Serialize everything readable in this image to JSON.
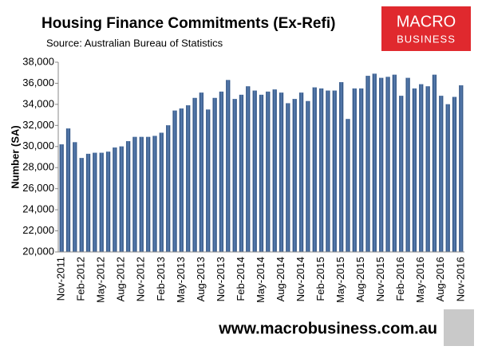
{
  "chart_data": {
    "type": "bar",
    "title": "Housing  Finance Commitments (Ex-Refi)",
    "subtitle": "Source: Australian Bureau of Statistics",
    "y_label": "Number (SA)",
    "logo": [
      "MACRO",
      "BUSINESS"
    ],
    "footer": "www.macrobusiness.com.au",
    "color": "#41679a",
    "categories": [
      "Nov-2011",
      null,
      null,
      "Feb-2012",
      null,
      null,
      "May-2012",
      null,
      null,
      "Aug-2012",
      null,
      null,
      "Nov-2012",
      null,
      null,
      "Feb-2013",
      null,
      null,
      "May-2013",
      null,
      null,
      "Aug-2013",
      null,
      null,
      "Nov-2013",
      null,
      null,
      "Feb-2014",
      null,
      null,
      "May-2014",
      null,
      null,
      "Aug-2014",
      null,
      null,
      "Nov-2014",
      null,
      null,
      "Feb-2015",
      null,
      null,
      "May-2015",
      null,
      null,
      "Aug-2015",
      null,
      null,
      "Nov-2015",
      null,
      null,
      "Feb-2016",
      null,
      null,
      "May-2016",
      null,
      null,
      "Aug-2016",
      null,
      null,
      "Nov-2016"
    ],
    "values": [
      30200,
      31700,
      30400,
      28900,
      29300,
      29400,
      29400,
      29500,
      29900,
      30000,
      30500,
      30900,
      30900,
      30900,
      31000,
      31300,
      32000,
      33400,
      33600,
      33900,
      34600,
      35100,
      33500,
      34600,
      35200,
      36300,
      34500,
      34900,
      35700,
      35300,
      34900,
      35200,
      35400,
      35100,
      34100,
      34500,
      35100,
      34300,
      35600,
      35500,
      35300,
      35300,
      36100,
      32600,
      35500,
      35500,
      36700,
      36900,
      36500,
      36600,
      36800,
      34800,
      36500,
      35500,
      35900,
      35700,
      36800,
      34800,
      34000,
      34700,
      35800
    ],
    "ylim": [
      20000,
      38000
    ],
    "yticks": [
      {
        "value": 20000,
        "label": "20,000"
      },
      {
        "value": 22000,
        "label": "22,000"
      },
      {
        "value": 24000,
        "label": "24,000"
      },
      {
        "value": 26000,
        "label": "26,000"
      },
      {
        "value": 28000,
        "label": "28,000"
      },
      {
        "value": 30000,
        "label": "30,000"
      },
      {
        "value": 32000,
        "label": "32,000"
      },
      {
        "value": 34000,
        "label": "34,000"
      },
      {
        "value": 36000,
        "label": "36,000"
      },
      {
        "value": 38000,
        "label": "38,000"
      }
    ]
  }
}
